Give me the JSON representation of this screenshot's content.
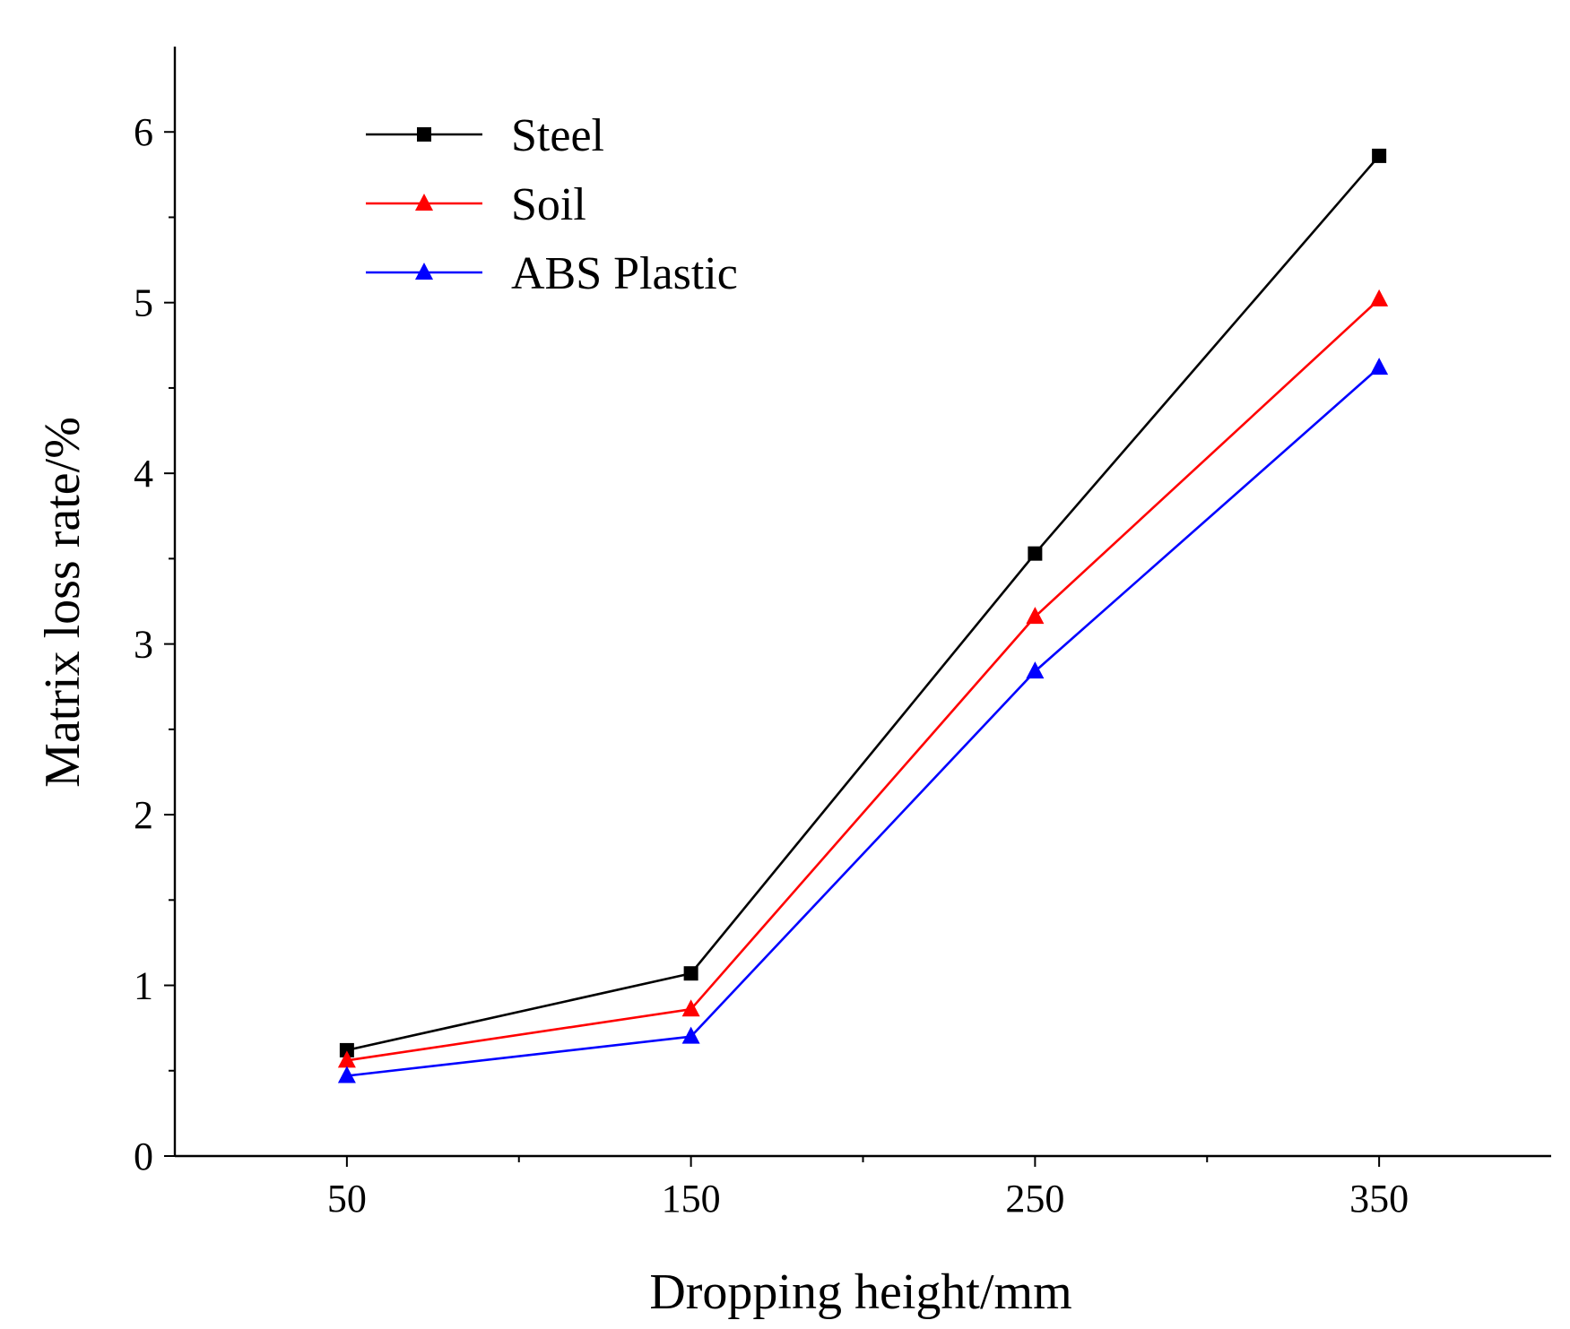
{
  "chart_data": {
    "type": "line",
    "title": "",
    "xlabel": "Dropping height/mm",
    "ylabel": "Matrix loss rate/%",
    "x": [
      50,
      150,
      250,
      350
    ],
    "x_tick_labels": [
      "50",
      "150",
      "250",
      "350"
    ],
    "xlim": [
      0,
      400
    ],
    "ylim": [
      0,
      6.5
    ],
    "y_ticks": [
      0,
      1,
      2,
      3,
      4,
      5,
      6
    ],
    "y_tick_labels": [
      "0",
      "1",
      "2",
      "3",
      "4",
      "5",
      "6"
    ],
    "grid": false,
    "legend_position": "top-left",
    "series": [
      {
        "name": "Steel",
        "color": "#000000",
        "marker": "square",
        "values": [
          0.62,
          1.07,
          3.53,
          5.86
        ]
      },
      {
        "name": "Soil",
        "color": "#ff0000",
        "marker": "triangle",
        "values": [
          0.56,
          0.86,
          3.16,
          5.02
        ]
      },
      {
        "name": "ABS Plastic",
        "color": "#0000ff",
        "marker": "triangle",
        "values": [
          0.47,
          0.7,
          2.84,
          4.62
        ]
      }
    ]
  }
}
